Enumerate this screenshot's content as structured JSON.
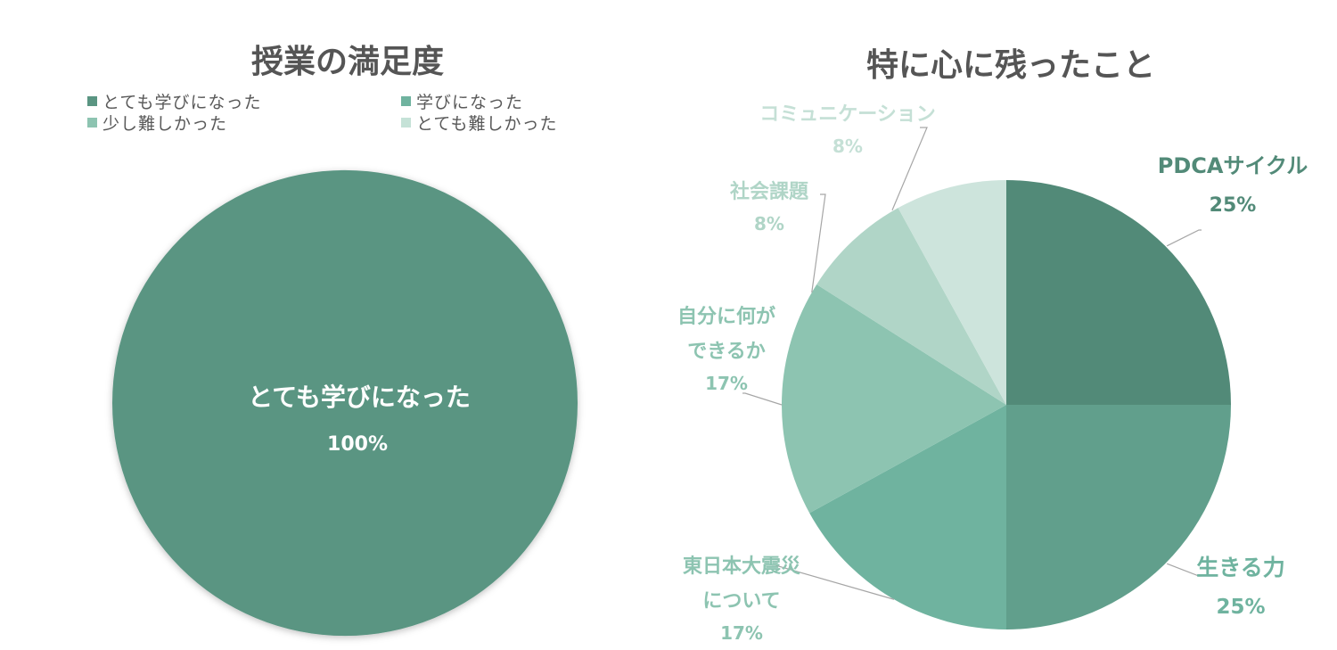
{
  "chart_data": [
    {
      "type": "pie",
      "title": "授業の満足度",
      "legend_position": "top",
      "categories": [
        "とても学びになった",
        "学びになった",
        "少し難しかった",
        "とても難しかった"
      ],
      "values": [
        100,
        0,
        0,
        0
      ],
      "colors": [
        "#5a9582",
        "#6fb39f",
        "#8dc4b1",
        "#c5e2d7"
      ],
      "data_labels": [
        {
          "name": "とても学びになった",
          "percent": "100%"
        }
      ]
    },
    {
      "type": "pie",
      "title": "特に心に残ったこと",
      "legend_position": "none",
      "categories": [
        "PDCAサイクル",
        "生きる力",
        "東日本大震災について",
        "自分に何ができるか",
        "社会課題",
        "コミュニケーション"
      ],
      "values": [
        25,
        25,
        17,
        17,
        8,
        8
      ],
      "colors": [
        "#528a78",
        "#619f8c",
        "#6fb39f",
        "#8dc4b1",
        "#b0d5c7",
        "#cde4dc"
      ],
      "data_labels": [
        {
          "lines": [
            "PDCAサイクル"
          ],
          "percent": "25%"
        },
        {
          "lines": [
            "生きる力"
          ],
          "percent": "25%"
        },
        {
          "lines": [
            "東日本大震災",
            "について"
          ],
          "percent": "17%"
        },
        {
          "lines": [
            "自分に何が",
            "できるか"
          ],
          "percent": "17%"
        },
        {
          "lines": [
            "社会課題"
          ],
          "percent": "8%"
        },
        {
          "lines": [
            "コミュニケーション"
          ],
          "percent": "8%"
        }
      ]
    }
  ]
}
